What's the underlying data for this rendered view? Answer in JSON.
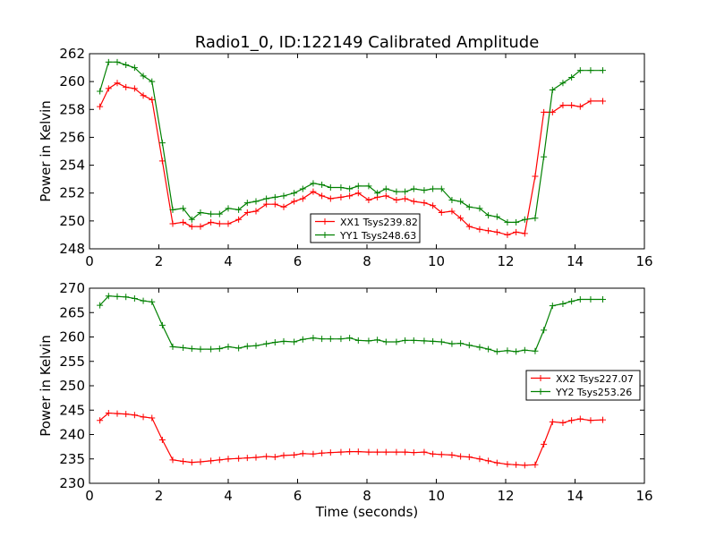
{
  "figure": {
    "title": "Radio1_0, ID:122149 Calibrated Amplitude"
  },
  "chart_data": [
    {
      "type": "line",
      "title": "Radio1_0, ID:122149 Calibrated Amplitude",
      "xlabel": "",
      "ylabel": "Power in Kelvin",
      "xlim": [
        0,
        16
      ],
      "ylim": [
        248,
        262
      ],
      "xticks": [
        0,
        2,
        4,
        6,
        8,
        10,
        12,
        14,
        16
      ],
      "yticks": [
        248,
        250,
        252,
        254,
        256,
        258,
        260,
        262
      ],
      "grid": false,
      "legend": "bottom-center",
      "x": [
        0.3,
        0.55,
        0.8,
        1.05,
        1.3,
        1.55,
        1.8,
        2.1,
        2.4,
        2.7,
        2.95,
        3.2,
        3.5,
        3.75,
        4.0,
        4.3,
        4.55,
        4.8,
        5.1,
        5.35,
        5.6,
        5.9,
        6.15,
        6.45,
        6.7,
        6.95,
        7.25,
        7.5,
        7.75,
        8.05,
        8.3,
        8.55,
        8.85,
        9.1,
        9.35,
        9.65,
        9.9,
        10.15,
        10.45,
        10.7,
        10.95,
        11.25,
        11.5,
        11.75,
        12.05,
        12.3,
        12.55,
        12.85,
        13.1,
        13.35,
        13.65,
        13.9,
        14.15,
        14.45,
        14.8
      ],
      "series": [
        {
          "name": "XX1 Tsys239.82",
          "color": "#ff0000",
          "values": [
            258.2,
            259.5,
            259.9,
            259.6,
            259.5,
            259.0,
            258.7,
            254.3,
            249.8,
            249.9,
            249.6,
            249.6,
            249.9,
            249.8,
            249.8,
            250.1,
            250.6,
            250.7,
            251.2,
            251.2,
            251.0,
            251.4,
            251.6,
            252.1,
            251.8,
            251.6,
            251.7,
            251.8,
            252.0,
            251.5,
            251.7,
            251.8,
            251.5,
            251.6,
            251.4,
            251.3,
            251.1,
            250.6,
            250.7,
            250.2,
            249.6,
            249.4,
            249.3,
            249.2,
            249.0,
            249.2,
            249.1,
            253.2,
            257.8,
            257.8,
            258.3,
            258.3,
            258.2,
            258.6,
            258.6
          ]
        },
        {
          "name": "YY1 Tsys248.63",
          "color": "#008000",
          "values": [
            259.3,
            261.4,
            261.4,
            261.2,
            261.0,
            260.4,
            260.0,
            255.6,
            250.8,
            250.9,
            250.1,
            250.6,
            250.5,
            250.5,
            250.9,
            250.8,
            251.3,
            251.4,
            251.6,
            251.7,
            251.8,
            252.0,
            252.3,
            252.7,
            252.6,
            252.4,
            252.4,
            252.3,
            252.5,
            252.5,
            252.0,
            252.3,
            252.1,
            252.1,
            252.3,
            252.2,
            252.3,
            252.3,
            251.5,
            251.4,
            251.0,
            250.9,
            250.4,
            250.3,
            249.9,
            249.9,
            250.1,
            250.2,
            254.6,
            259.4,
            259.9,
            260.3,
            260.8,
            260.8,
            260.8
          ]
        }
      ]
    },
    {
      "type": "line",
      "title": "",
      "xlabel": "Time (seconds)",
      "ylabel": "Power in Kelvin",
      "xlim": [
        0,
        16
      ],
      "ylim": [
        230,
        270
      ],
      "xticks": [
        0,
        2,
        4,
        6,
        8,
        10,
        12,
        14,
        16
      ],
      "yticks": [
        230,
        235,
        240,
        245,
        250,
        255,
        260,
        265,
        270
      ],
      "grid": false,
      "legend": "center-right",
      "x": [
        0.3,
        0.55,
        0.8,
        1.05,
        1.3,
        1.55,
        1.8,
        2.1,
        2.4,
        2.7,
        2.95,
        3.2,
        3.5,
        3.75,
        4.0,
        4.3,
        4.55,
        4.8,
        5.1,
        5.35,
        5.6,
        5.9,
        6.15,
        6.45,
        6.7,
        6.95,
        7.25,
        7.5,
        7.75,
        8.05,
        8.3,
        8.55,
        8.85,
        9.1,
        9.35,
        9.65,
        9.9,
        10.15,
        10.45,
        10.7,
        10.95,
        11.25,
        11.5,
        11.75,
        12.05,
        12.3,
        12.55,
        12.85,
        13.1,
        13.35,
        13.65,
        13.9,
        14.15,
        14.45,
        14.8
      ],
      "series": [
        {
          "name": "XX2 Tsys227.07",
          "color": "#ff0000",
          "values": [
            242.9,
            244.4,
            244.3,
            244.2,
            244.0,
            243.6,
            243.4,
            238.9,
            234.8,
            234.5,
            234.3,
            234.4,
            234.6,
            234.8,
            235.0,
            235.1,
            235.2,
            235.3,
            235.5,
            235.4,
            235.7,
            235.8,
            236.1,
            236.0,
            236.2,
            236.3,
            236.4,
            236.5,
            236.5,
            236.4,
            236.4,
            236.4,
            236.4,
            236.4,
            236.3,
            236.4,
            236.0,
            235.9,
            235.8,
            235.5,
            235.4,
            235.0,
            234.6,
            234.2,
            233.9,
            233.8,
            233.7,
            233.8,
            238.0,
            242.6,
            242.4,
            242.9,
            243.2,
            242.9,
            243.0
          ]
        },
        {
          "name": "YY2 Tsys253.26",
          "color": "#008000",
          "values": [
            266.5,
            268.4,
            268.3,
            268.2,
            267.9,
            267.4,
            267.2,
            262.4,
            258.0,
            257.8,
            257.6,
            257.5,
            257.5,
            257.6,
            258.0,
            257.7,
            258.1,
            258.2,
            258.6,
            258.9,
            259.1,
            259.0,
            259.5,
            259.8,
            259.6,
            259.6,
            259.6,
            259.8,
            259.3,
            259.2,
            259.4,
            259.0,
            259.0,
            259.3,
            259.3,
            259.2,
            259.1,
            259.0,
            258.6,
            258.7,
            258.3,
            257.9,
            257.5,
            257.0,
            257.2,
            257.0,
            257.3,
            257.1,
            261.4,
            266.4,
            266.8,
            267.3,
            267.7,
            267.7,
            267.7
          ]
        }
      ]
    }
  ]
}
